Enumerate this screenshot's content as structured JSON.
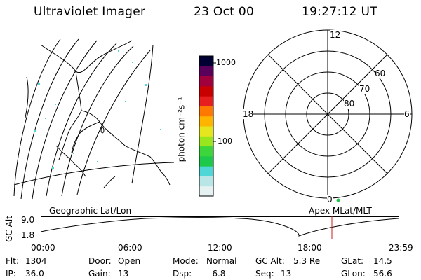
{
  "header": {
    "instrument": "Ultraviolet Imager",
    "date": "23 Oct 00",
    "time": "19:27:12 UT"
  },
  "colorbar": {
    "unit_label": "photon cm⁻²s⁻¹",
    "ticks": [
      "1000",
      "100"
    ],
    "colors": [
      "#e6f2f2",
      "#b8e6e6",
      "#4fd6d6",
      "#1ec84a",
      "#3cd63c",
      "#9ae61e",
      "#e6e61e",
      "#ffb400",
      "#ff7800",
      "#e61e1e",
      "#c80000",
      "#a0003c",
      "#5a005a",
      "#000032"
    ]
  },
  "polar": {
    "mlt_labels": {
      "top": "12",
      "bottom": "0",
      "left": "18",
      "right": "6"
    },
    "lat_labels": [
      "60",
      "70",
      "80"
    ]
  },
  "map_labels": {
    "left": "Geographic Lat/Lon",
    "right": "Apex MLat/MLT"
  },
  "altitude_plot": {
    "ylabel": "GC Alt",
    "yticks": [
      "9.0",
      "1.8"
    ],
    "xticks": [
      "00:00",
      "06:00",
      "12:00",
      "18:00",
      "23:59"
    ],
    "current_color": "#c81e1e"
  },
  "status": {
    "flt_label": "Flt:",
    "flt_value": "1304",
    "ip_label": "IP:",
    "ip_value": "36.0",
    "door_label": "Door:",
    "door_value": "Open",
    "gain_label": "Gain:",
    "gain_value": "13",
    "mode_label": "Mode:",
    "mode_value": "Normal",
    "dsp_label": "Dsp:",
    "dsp_value": "-6.8",
    "gcalt_label": "GC Alt:",
    "gcalt_value": "5.3 Re",
    "seq_label": "Seq:",
    "seq_value": "13",
    "glat_label": "GLat:",
    "glat_value": "14.5",
    "glon_label": "GLon:",
    "glon_value": "56.6"
  }
}
